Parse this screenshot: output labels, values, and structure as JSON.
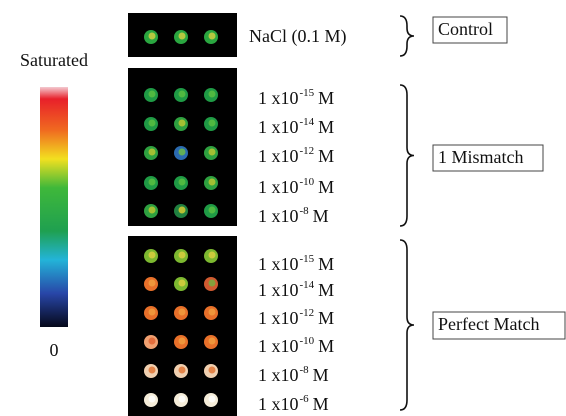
{
  "colorbar": {
    "top_label": "Saturated",
    "bottom_label": "0"
  },
  "control": {
    "sample": "NaCl (0.1 M)",
    "label": "Control"
  },
  "mismatch": {
    "label": "1 Mismatch",
    "rows": [
      {
        "base": "1 x10",
        "exp": "-15",
        "unit": "M"
      },
      {
        "base": "1 x10",
        "exp": "-14",
        "unit": "M"
      },
      {
        "base": "1 x10",
        "exp": "-12",
        "unit": "M"
      },
      {
        "base": "1 x10",
        "exp": "-10",
        "unit": "M"
      },
      {
        "base": "1 x10",
        "exp": "-8",
        "unit": "M"
      }
    ]
  },
  "perfect": {
    "label": "Perfect Match",
    "rows": [
      {
        "base": "1 x10",
        "exp": "-15",
        "unit": "M"
      },
      {
        "base": "1 x10",
        "exp": "-14",
        "unit": "M"
      },
      {
        "base": "1 x10",
        "exp": "-12",
        "unit": "M"
      },
      {
        "base": "1 x10",
        "exp": "-10",
        "unit": "M"
      },
      {
        "base": "1 x10",
        "exp": "-8",
        "unit": "M"
      },
      {
        "base": "1 x10",
        "exp": "-6",
        "unit": "M"
      }
    ]
  }
}
